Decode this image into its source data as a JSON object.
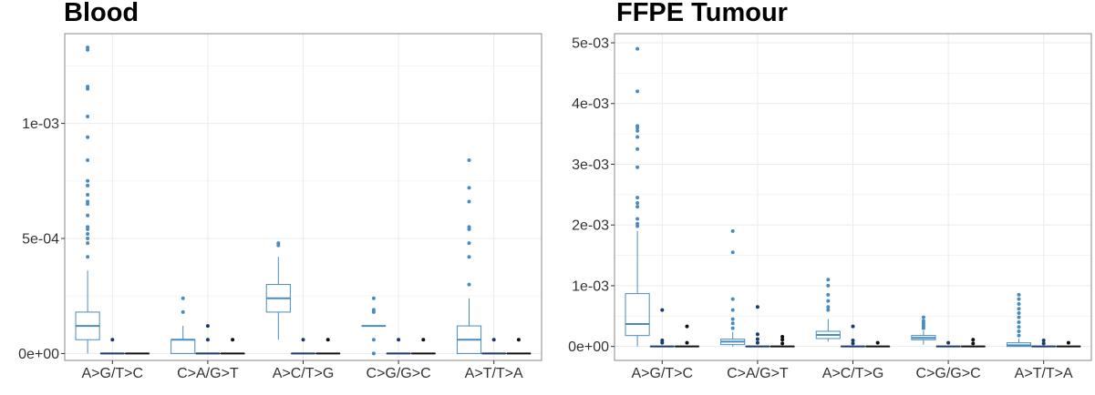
{
  "colors": {
    "series_a": "#4a8bbf",
    "series_b": "#1a3a6b",
    "series_c": "#111111",
    "grid": "#ebebeb",
    "frame": "#888888"
  },
  "chart_data": [
    {
      "type": "box",
      "title": "Blood",
      "categories": [
        "A>G/T>C",
        "C>A/G>T",
        "A>C/T>G",
        "C>G/G>C",
        "A>T/T>A"
      ],
      "ylim": [
        -3e-05,
        0.00139
      ],
      "yticks": [
        0,
        0.0005,
        0.001
      ],
      "ytick_labels": [
        "0e+00",
        "5e-04",
        "1e-03"
      ],
      "grid": true,
      "series": [
        {
          "color": "#4a8bbf",
          "boxes": [
            {
              "min": 0,
              "q1": 6e-05,
              "median": 0.00012,
              "q3": 0.00018,
              "max": 0.00036,
              "outliers": [
                0.00042,
                0.00048,
                0.0005,
                0.00052,
                0.00054,
                0.00055,
                0.0006,
                0.00065,
                0.00066,
                0.00069,
                0.00073,
                0.00075,
                0.00084,
                0.00094,
                0.00103,
                0.00115,
                0.00116,
                0.00132,
                0.00133
              ]
            },
            {
              "min": 0,
              "q1": 0,
              "median": 6e-05,
              "q3": 6e-05,
              "max": 0.00012,
              "outliers": [
                0.00018,
                0.00024
              ]
            },
            {
              "min": 6e-05,
              "q1": 0.00018,
              "median": 0.00024,
              "q3": 0.0003,
              "max": 0.00042,
              "outliers": [
                0.00047,
                0.00048
              ]
            },
            {
              "min": 0.00012,
              "q1": 0.00012,
              "median": 0.00012,
              "q3": 0.00012,
              "max": 0.00012,
              "outliers": [
                0,
                6e-05,
                0.00018,
                0.00019,
                0.00024
              ]
            },
            {
              "min": 0,
              "q1": 0,
              "median": 6e-05,
              "q3": 0.00012,
              "max": 0.00024,
              "outliers": [
                0.0003,
                0.00042,
                0.00048,
                0.00054,
                0.00055,
                0.00066,
                0.00072,
                0.00084
              ]
            }
          ]
        },
        {
          "color": "#1a3a6b",
          "boxes": [
            {
              "min": 0,
              "q1": 0,
              "median": 0,
              "q3": 0,
              "max": 0,
              "outliers": [
                6e-05
              ]
            },
            {
              "min": 0,
              "q1": 0,
              "median": 0,
              "q3": 0,
              "max": 0,
              "outliers": [
                6e-05,
                0.00012
              ]
            },
            {
              "min": 0,
              "q1": 0,
              "median": 0,
              "q3": 0,
              "max": 0,
              "outliers": [
                6e-05
              ]
            },
            {
              "min": 0,
              "q1": 0,
              "median": 0,
              "q3": 0,
              "max": 0,
              "outliers": [
                6e-05
              ]
            },
            {
              "min": 0,
              "q1": 0,
              "median": 0,
              "q3": 0,
              "max": 0,
              "outliers": [
                6e-05
              ]
            }
          ]
        },
        {
          "color": "#111111",
          "boxes": [
            {
              "min": 0,
              "q1": 0,
              "median": 0,
              "q3": 0,
              "max": 0,
              "outliers": []
            },
            {
              "min": 0,
              "q1": 0,
              "median": 0,
              "q3": 0,
              "max": 0,
              "outliers": [
                6e-05
              ]
            },
            {
              "min": 0,
              "q1": 0,
              "median": 0,
              "q3": 0,
              "max": 0,
              "outliers": [
                6e-05
              ]
            },
            {
              "min": 0,
              "q1": 0,
              "median": 0,
              "q3": 0,
              "max": 0,
              "outliers": [
                6e-05
              ]
            },
            {
              "min": 0,
              "q1": 0,
              "median": 0,
              "q3": 0,
              "max": 0,
              "outliers": [
                6e-05
              ]
            }
          ]
        }
      ]
    },
    {
      "type": "box",
      "title": "FFPE Tumour",
      "categories": [
        "A>G/T>C",
        "C>A/G>T",
        "A>C/T>G",
        "C>G/G>C",
        "A>T/T>A"
      ],
      "ylim": [
        -0.00023,
        0.00515
      ],
      "yticks": [
        0,
        0.001,
        0.002,
        0.003,
        0.004,
        0.005
      ],
      "ytick_labels": [
        "0e+00",
        "1e-03",
        "2e-03",
        "3e-03",
        "4e-03",
        "5e-03"
      ],
      "grid": true,
      "series": [
        {
          "color": "#4a8bbf",
          "boxes": [
            {
              "min": 0,
              "q1": 0.00018,
              "median": 0.00037,
              "q3": 0.00087,
              "max": 0.0019,
              "outliers": [
                0.00198,
                0.00202,
                0.0021,
                0.0023,
                0.00236,
                0.00245,
                0.00295,
                0.00325,
                0.00345,
                0.00355,
                0.0036,
                0.00363,
                0.0042,
                0.0049
              ]
            },
            {
              "min": 0,
              "q1": 3e-05,
              "median": 8e-05,
              "q3": 0.00012,
              "max": 0.00024,
              "outliers": [
                0.0003,
                0.00038,
                0.00045,
                0.0006,
                0.00078,
                0.00155,
                0.0019
              ]
            },
            {
              "min": 8e-05,
              "q1": 0.00013,
              "median": 0.00019,
              "q3": 0.00025,
              "max": 0.00045,
              "outliers": [
                0.0006,
                0.00065,
                0.00075,
                0.00085,
                0.001,
                0.0011
              ]
            },
            {
              "min": 3e-05,
              "q1": 0.00011,
              "median": 0.00014,
              "q3": 0.00018,
              "max": 0.00026,
              "outliers": [
                0.0003,
                0.00034,
                0.00038,
                0.00042,
                0.00048
              ]
            },
            {
              "min": 0,
              "q1": 0,
              "median": 2e-05,
              "q3": 6e-05,
              "max": 0.00013,
              "outliers": [
                0.00018,
                0.00025,
                0.00032,
                0.0004,
                0.00048,
                0.00055,
                0.00062,
                0.0007,
                0.00078,
                0.00085
              ]
            }
          ]
        },
        {
          "color": "#1a3a6b",
          "boxes": [
            {
              "min": 0,
              "q1": 0,
              "median": 0,
              "q3": 0,
              "max": 0,
              "outliers": [
                6e-05,
                0.0001,
                0.0006
              ]
            },
            {
              "min": 0,
              "q1": 0,
              "median": 0,
              "q3": 0,
              "max": 0,
              "outliers": [
                6e-05,
                0.00012,
                0.0002,
                0.00065
              ]
            },
            {
              "min": 0,
              "q1": 0,
              "median": 0,
              "q3": 0,
              "max": 0,
              "outliers": [
                5e-05,
                0.0001,
                0.00033
              ]
            },
            {
              "min": 0,
              "q1": 0,
              "median": 0,
              "q3": 0,
              "max": 0,
              "outliers": [
                6e-05
              ]
            },
            {
              "min": 0,
              "q1": 0,
              "median": 0,
              "q3": 0,
              "max": 0,
              "outliers": [
                5e-05,
                0.0001
              ]
            }
          ]
        },
        {
          "color": "#111111",
          "boxes": [
            {
              "min": 0,
              "q1": 0,
              "median": 0,
              "q3": 0,
              "max": 0,
              "outliers": [
                6e-05,
                0.00033
              ]
            },
            {
              "min": 0,
              "q1": 0,
              "median": 0,
              "q3": 0,
              "max": 0,
              "outliers": [
                5e-05,
                0.00011,
                0.00016
              ]
            },
            {
              "min": 0,
              "q1": 0,
              "median": 0,
              "q3": 0,
              "max": 0,
              "outliers": [
                6e-05
              ]
            },
            {
              "min": 0,
              "q1": 0,
              "median": 0,
              "q3": 0,
              "max": 0,
              "outliers": [
                5e-05,
                0.00011
              ]
            },
            {
              "min": 0,
              "q1": 0,
              "median": 0,
              "q3": 0,
              "max": 0,
              "outliers": [
                6e-05
              ]
            }
          ]
        }
      ]
    }
  ]
}
